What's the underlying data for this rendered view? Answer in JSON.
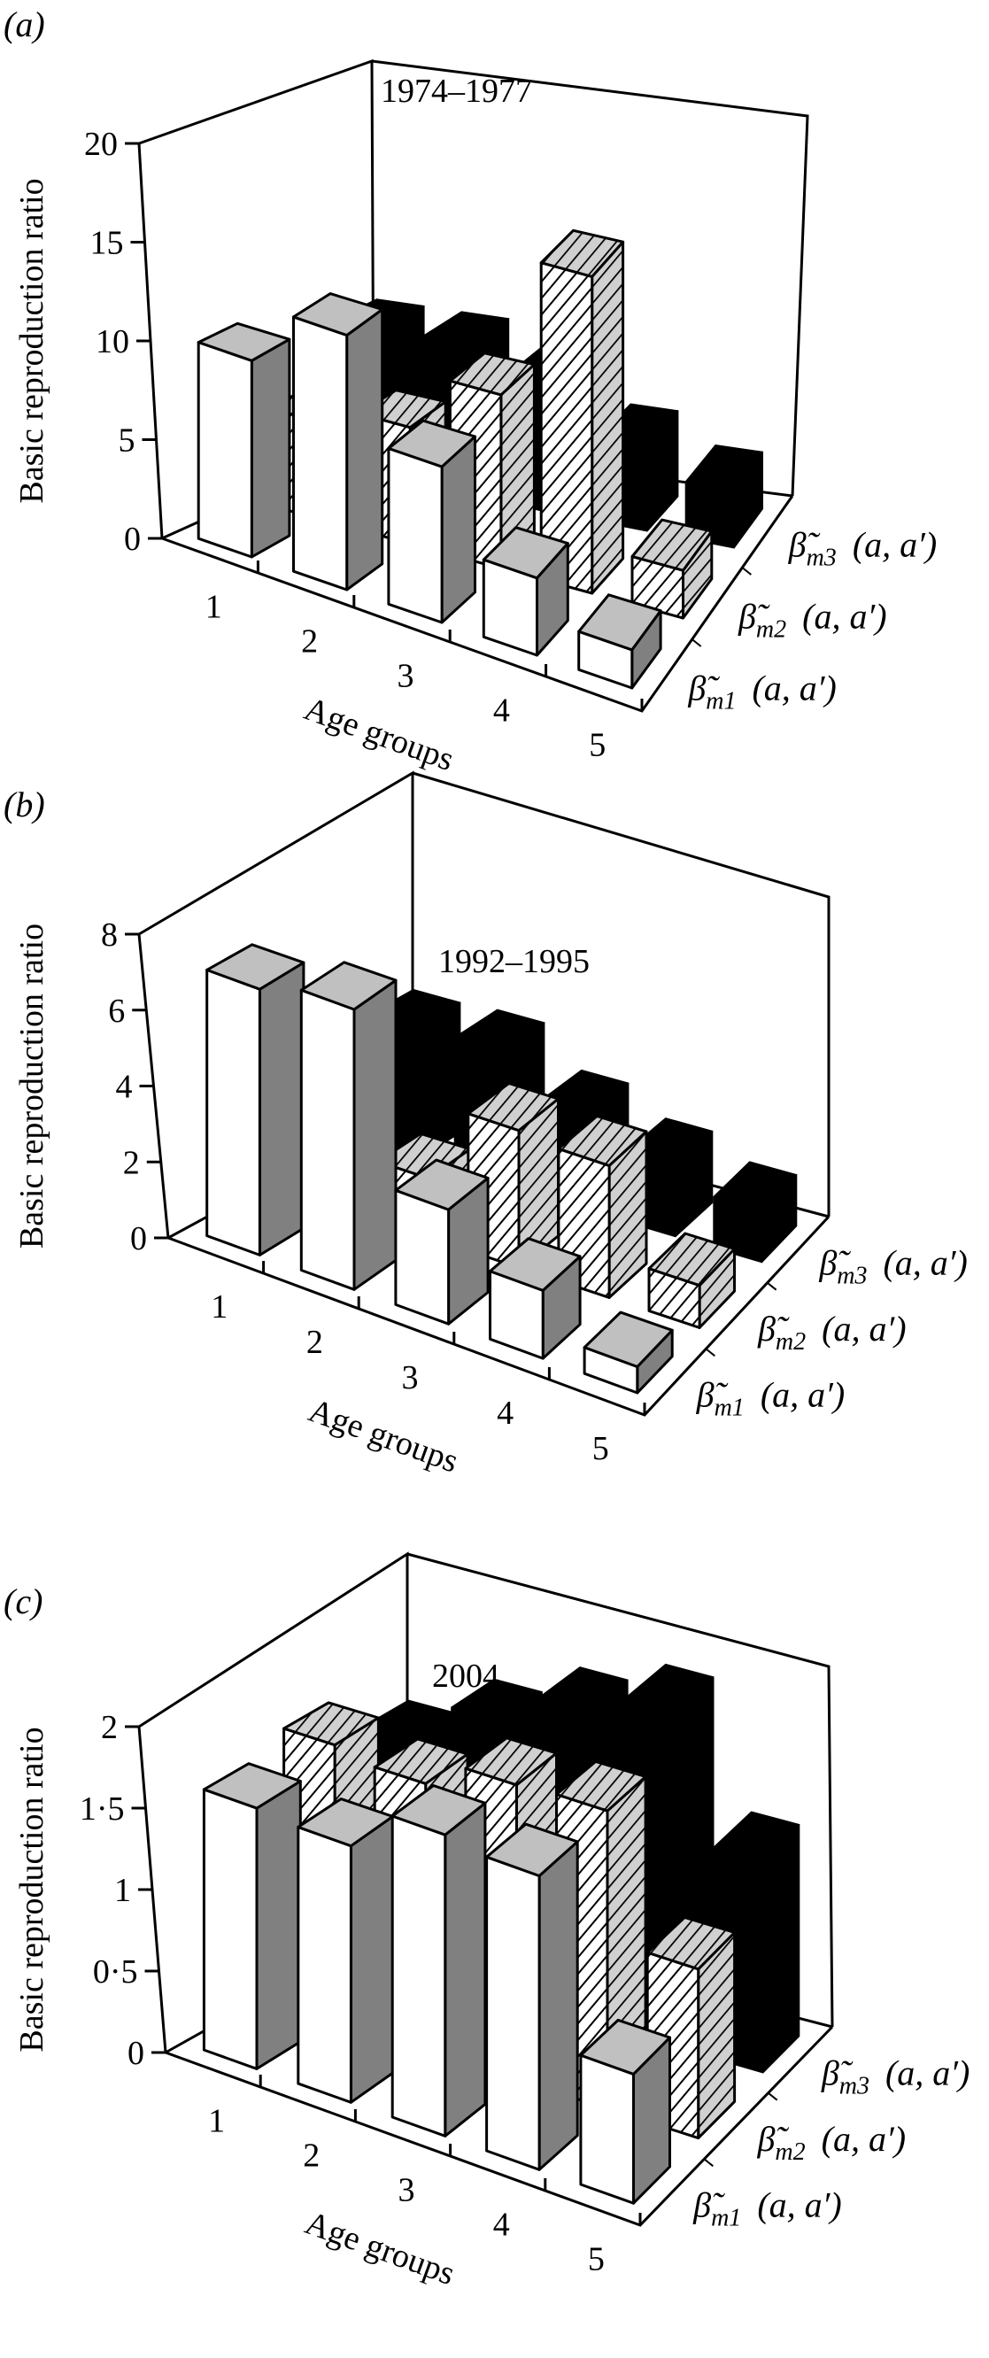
{
  "figure": {
    "panels": [
      {
        "label": "(a)",
        "letter": "a",
        "period": "1974–1977"
      },
      {
        "label": "(b)",
        "letter": "b",
        "period": "1992–1995"
      },
      {
        "label": "(c)",
        "letter": "c",
        "period": "2004"
      }
    ],
    "ylabel": "Basic reproduction ratio",
    "xlabel": "Age groups",
    "series_labels": [
      {
        "base": "β̃",
        "sub": "m1",
        "args": "(a, a′)"
      },
      {
        "base": "β̃",
        "sub": "m2",
        "args": "(a, a′)"
      },
      {
        "base": "β̃",
        "sub": "m3",
        "args": "(a, a′)"
      }
    ],
    "colors": {
      "m1_front": "#ffffff",
      "m1_side": "#808080",
      "m1_top": "#c0c0c0",
      "m2_fill": "#ffffff",
      "m2_hatch": "#000000",
      "m2_side": "#d0d0d0",
      "m3_fill": "#000000",
      "outline": "#000000"
    }
  },
  "chart_data": [
    {
      "type": "bar",
      "subtype": "3d-column",
      "title": "1974–1977",
      "panel": "(a)",
      "xlabel": "Age groups",
      "ylabel": "Basic reproduction ratio",
      "categories": [
        "1",
        "2",
        "3",
        "4",
        "5"
      ],
      "yticks": [
        "0",
        "5",
        "10",
        "15",
        "20"
      ],
      "ylim": [
        0,
        20
      ],
      "series": [
        {
          "name": "β̃m1 (a, a′)",
          "values": [
            10,
            13,
            8,
            4,
            2
          ]
        },
        {
          "name": "β̃m2 (a, a′)",
          "values": [
            5,
            6,
            9,
            16.5,
            2.5
          ]
        },
        {
          "name": "β̃m3 (a, a′)",
          "values": [
            8,
            8,
            7,
            4.5,
            3
          ]
        }
      ]
    },
    {
      "type": "bar",
      "subtype": "3d-column",
      "title": "1992–1995",
      "panel": "(b)",
      "xlabel": "Age groups",
      "ylabel": "Basic reproduction ratio",
      "categories": [
        "1",
        "2",
        "3",
        "4",
        "5"
      ],
      "yticks": [
        "0",
        "2",
        "4",
        "6",
        "8"
      ],
      "ylim": [
        0,
        8
      ],
      "series": [
        {
          "name": "β̃m1 (a, a′)",
          "values": [
            6.9,
            7.3,
            3.0,
            1.8,
            0.7
          ]
        },
        {
          "name": "β̃m2 (a, a′)",
          "values": [
            1.0,
            1.5,
            3.5,
            3.4,
            1.1
          ]
        },
        {
          "name": "β̃m3 (a, a′)",
          "values": [
            3.2,
            3.3,
            2.4,
            1.8,
            1.3
          ]
        }
      ]
    },
    {
      "type": "bar",
      "subtype": "3d-column",
      "title": "2004",
      "panel": "(c)",
      "xlabel": "Age groups",
      "ylabel": "Basic reproduction ratio",
      "categories": [
        "1",
        "2",
        "3",
        "4",
        "5"
      ],
      "yticks": [
        "0",
        "0·5",
        "1",
        "1·5",
        "2"
      ],
      "ylim": [
        0,
        2
      ],
      "series": [
        {
          "name": "β̃m1 (a, a′)",
          "values": [
            1.57,
            1.55,
            1.83,
            1.8,
            0.8
          ]
        },
        {
          "name": "β̃m2 (a, a′)",
          "values": [
            1.6,
            1.55,
            1.72,
            1.75,
            1.0
          ]
        },
        {
          "name": "β̃m3 (a, a′)",
          "values": [
            1.3,
            1.55,
            1.75,
            1.9,
            1.2
          ]
        }
      ]
    }
  ]
}
